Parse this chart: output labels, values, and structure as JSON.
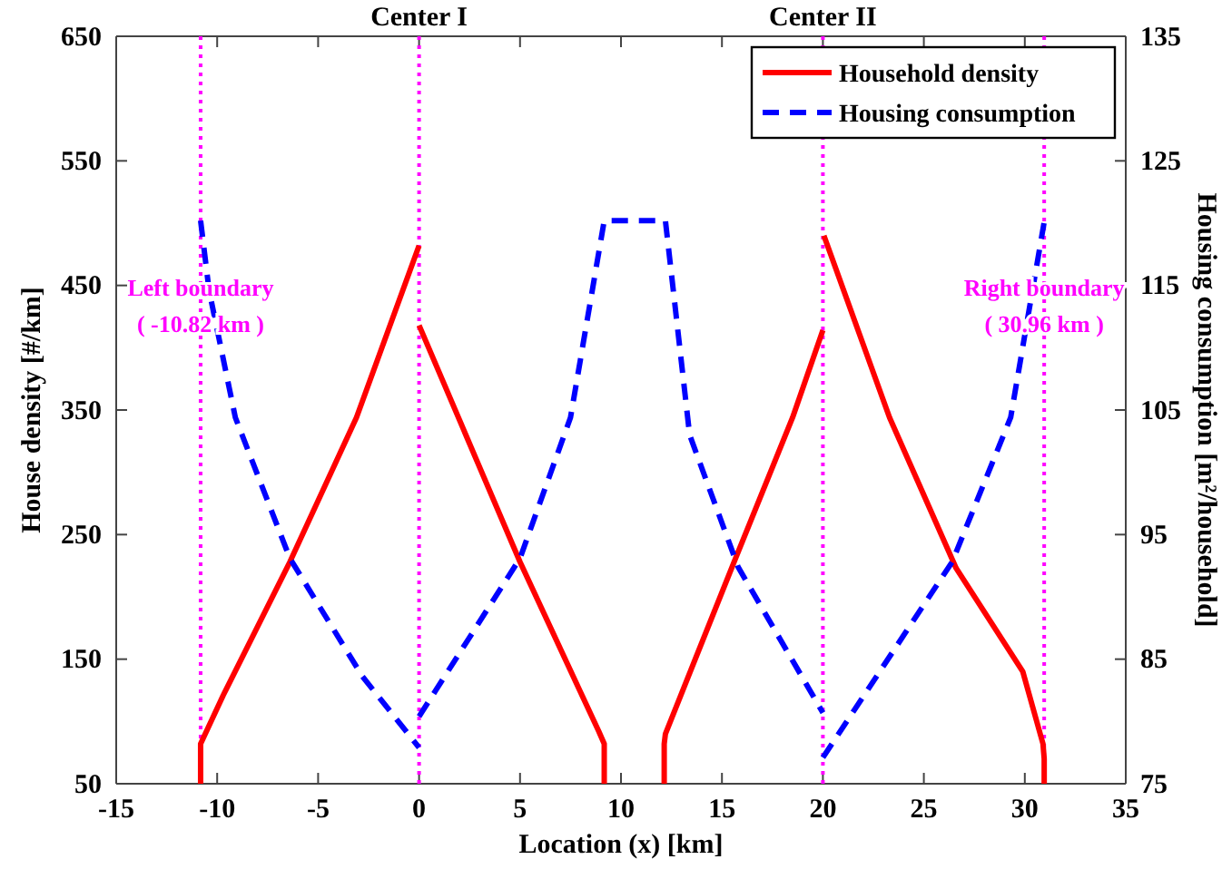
{
  "chart_data": {
    "type": "line",
    "xlabel": "Location (x) [km]",
    "ylabel": "House density [#/km]",
    "y2label": "Housing consumption [m²/household]",
    "xlim": [
      -15,
      35
    ],
    "xticks": [
      -15,
      -10,
      -5,
      0,
      5,
      10,
      15,
      20,
      25,
      30,
      35
    ],
    "ylim": [
      50,
      650
    ],
    "yticks": [
      50,
      150,
      250,
      350,
      450,
      550,
      650
    ],
    "y2lim": [
      75,
      135
    ],
    "y2ticks": [
      75,
      85,
      95,
      105,
      115,
      125,
      135
    ],
    "grid": false,
    "legend": "top right",
    "series": [
      {
        "name": "Household density",
        "color": "#ff0000",
        "line_style": "solid",
        "x": [
          -10.82,
          -10.82,
          -9.7,
          -6.4,
          -3.1,
          0
        ],
        "values": [
          50,
          82,
          121,
          228,
          344,
          482
        ]
      },
      {
        "name": "Housing consumption",
        "color": "#0000ff",
        "axis": "y2",
        "line_style": "dashed",
        "x": [
          -10.82,
          -10.4,
          -9.1,
          -6.4,
          -2.8,
          0
        ],
        "values": [
          120.2,
          114.6,
          104.4,
          93.1,
          83.6,
          77.9
        ]
      },
      {
        "color": "#ff0000",
        "line_style": "solid",
        "x": [
          0,
          5,
          8.9,
          9.17,
          9.17
        ],
        "values": [
          418,
          228,
          92,
          82,
          50
        ]
      },
      {
        "color": "#ff0000",
        "line_style": "solid",
        "x": [
          12.14,
          12.14,
          12.2,
          15.6,
          18.5,
          20
        ],
        "values": [
          50,
          82,
          90,
          228,
          344,
          414
        ]
      },
      {
        "color": "#ff0000",
        "line_style": "solid",
        "x": [
          20.05,
          23.3,
          26.6,
          29.9,
          30.9,
          30.96,
          30.96
        ],
        "values": [
          490,
          344,
          223,
          140,
          82,
          70,
          50
        ]
      },
      {
        "color": "#0000ff",
        "axis": "y2",
        "line_style": "dashed",
        "x": [
          0,
          5,
          7.5,
          9.17,
          12.2,
          13.4,
          15.8,
          20
        ],
        "values": [
          80.4,
          93.1,
          104.4,
          120.2,
          120.2,
          103,
          92.4,
          80.7
        ]
      },
      {
        "color": "#0000ff",
        "axis": "y2",
        "line_style": "dashed",
        "x": [
          20,
          26.4,
          29.3,
          30.95
        ],
        "values": [
          77.1,
          92.8,
          104.4,
          120
        ]
      }
    ],
    "ref_lines": [
      {
        "axis": "x",
        "value": -10.82,
        "label": "Left boundary ( -10.82 km )",
        "color": "#ff00ff",
        "line_style": "dotted"
      },
      {
        "axis": "x",
        "value": 0,
        "label": "Center I",
        "color": "#ff00ff",
        "line_style": "dotted"
      },
      {
        "axis": "x",
        "value": 20,
        "label": "Center II",
        "color": "#ff00ff",
        "line_style": "dotted"
      },
      {
        "axis": "x",
        "value": 30.96,
        "label": "Right boundary ( 30.96 km )",
        "color": "#ff00ff",
        "line_style": "dotted"
      }
    ]
  }
}
